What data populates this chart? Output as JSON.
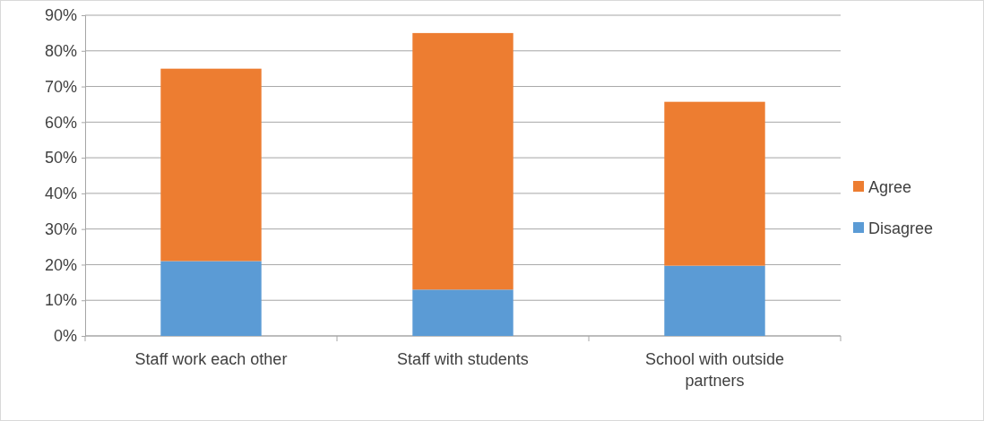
{
  "chart_data": {
    "type": "bar",
    "stacked": true,
    "categories": [
      "Staff work each other",
      "Staff with students",
      "School with outside partners"
    ],
    "series": [
      {
        "name": "Disagree",
        "color": "#5b9bd5",
        "values": [
          21,
          13,
          19.7
        ]
      },
      {
        "name": "Agree",
        "color": "#ed7d31",
        "values": [
          54,
          72,
          46
        ]
      }
    ],
    "ylim": [
      0,
      90
    ],
    "yticks": [
      {
        "value": 0,
        "label": "0%"
      },
      {
        "value": 10,
        "label": "10%"
      },
      {
        "value": 20,
        "label": "20%"
      },
      {
        "value": 30,
        "label": "30%"
      },
      {
        "value": 40,
        "label": "40%"
      },
      {
        "value": 50,
        "label": "50%"
      },
      {
        "value": 60,
        "label": "60%"
      },
      {
        "value": 70,
        "label": "70%"
      },
      {
        "value": 80,
        "label": "80%"
      },
      {
        "value": 90,
        "label": "90%"
      }
    ],
    "grid": "y",
    "legend": "right"
  }
}
